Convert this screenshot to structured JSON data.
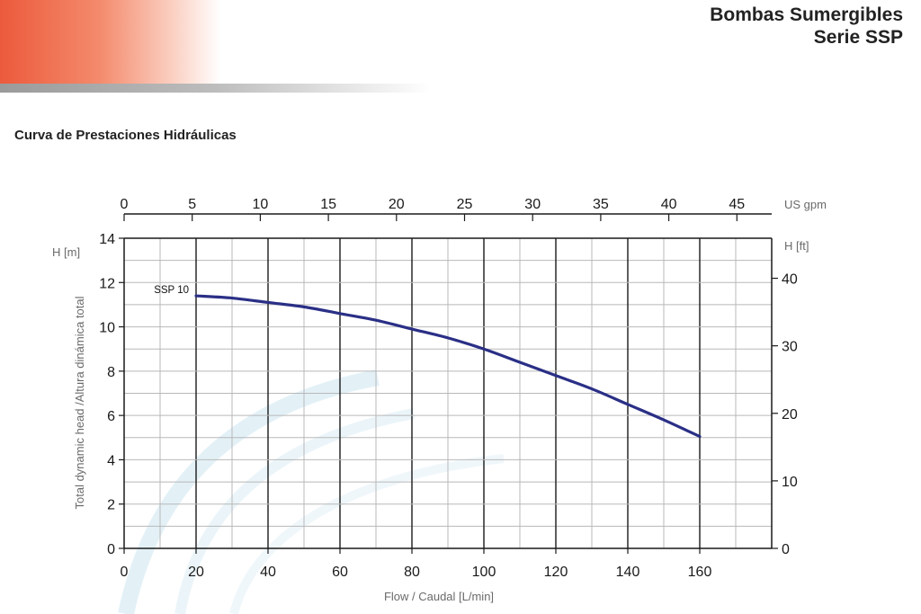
{
  "header": {
    "title_line1": "Bombas Sumergibles",
    "title_line2": "Serie SSP"
  },
  "section_title": "Curva de Prestaciones Hidráulicas",
  "colors": {
    "brand_red": "#ec5a3c",
    "curve": "#2a2f86",
    "grid_major": "#1a1a1a",
    "grid_minor": "#b8b8b8",
    "axis_text": "#1a1a1a",
    "unit_text": "#6a6a6a"
  },
  "chart_data": {
    "type": "line",
    "title": "Curva de Prestaciones Hidráulicas",
    "xlabel": "Flow / Caudal [L/min]",
    "ylabel": "Total dynamic head /Altura dinámica total",
    "xlim": [
      0,
      180
    ],
    "ylim": [
      0,
      14
    ],
    "x_ticks": [
      0,
      20,
      40,
      60,
      80,
      100,
      120,
      140,
      160
    ],
    "y_ticks": [
      0,
      2,
      4,
      6,
      8,
      10,
      12,
      14
    ],
    "y_unit_left": "H [m]",
    "top_axis": {
      "unit": "US gpm",
      "ticks": [
        0,
        5,
        10,
        15,
        20,
        25,
        30,
        35,
        40,
        45
      ],
      "factor_lpm_per_unit": 3.785
    },
    "right_axis": {
      "unit": "H [ft]",
      "ticks": [
        0,
        10,
        20,
        30,
        40
      ],
      "factor_m_per_unit": 0.3048
    },
    "grid": true,
    "series": [
      {
        "name": "SSP 10",
        "x": [
          20,
          30,
          40,
          50,
          60,
          70,
          80,
          90,
          100,
          110,
          120,
          130,
          140,
          150,
          160
        ],
        "y": [
          11.4,
          11.3,
          11.1,
          10.9,
          10.6,
          10.3,
          9.9,
          9.5,
          9.0,
          8.4,
          7.8,
          7.2,
          6.5,
          5.8,
          5.05
        ]
      }
    ]
  }
}
